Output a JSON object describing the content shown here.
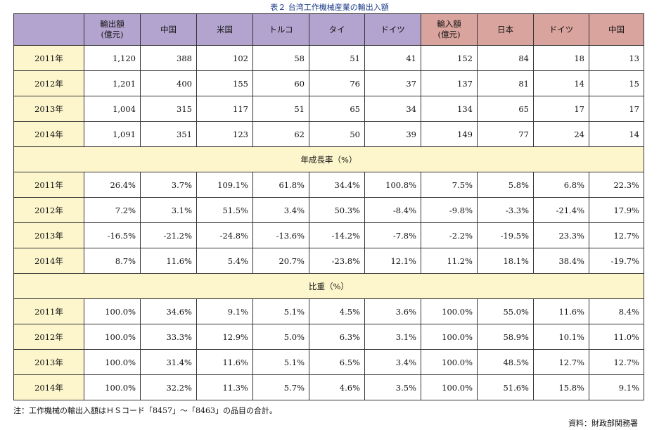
{
  "title": "表２ 台湾工作機械産業の輸出入額",
  "header": [
    "輸出額\n(億元)",
    "中国",
    "米国",
    "トルコ",
    "タイ",
    "ドイツ",
    "輸入額\n(億元)",
    "日本",
    "ドイツ",
    "中国"
  ],
  "header_colors": {
    "export": "#b3a4cf",
    "import": "#d9a49d",
    "year": "#fdf6cc"
  },
  "rows_amount": [
    {
      "year": "2011年",
      "values": [
        "1,120",
        "388",
        "102",
        "58",
        "51",
        "41",
        "152",
        "84",
        "18",
        "13"
      ]
    },
    {
      "year": "2012年",
      "values": [
        "1,201",
        "400",
        "155",
        "60",
        "76",
        "37",
        "137",
        "81",
        "14",
        "15"
      ]
    },
    {
      "year": "2013年",
      "values": [
        "1,004",
        "315",
        "117",
        "51",
        "65",
        "34",
        "134",
        "65",
        "17",
        "17"
      ]
    },
    {
      "year": "2014年",
      "values": [
        "1,091",
        "351",
        "123",
        "62",
        "50",
        "39",
        "149",
        "77",
        "24",
        "14"
      ]
    }
  ],
  "section_growth": "年成長率（%）",
  "rows_growth": [
    {
      "year": "2011年",
      "values": [
        "26.4%",
        "3.7%",
        "109.1%",
        "61.8%",
        "34.4%",
        "100.8%",
        "7.5%",
        "5.8%",
        "6.8%",
        "22.3%"
      ]
    },
    {
      "year": "2012年",
      "values": [
        "7.2%",
        "3.1%",
        "51.5%",
        "3.4%",
        "50.3%",
        "-8.4%",
        "-9.8%",
        "-3.3%",
        "-21.4%",
        "17.9%"
      ]
    },
    {
      "year": "2013年",
      "values": [
        "-16.5%",
        "-21.2%",
        "-24.8%",
        "-13.6%",
        "-14.2%",
        "-7.8%",
        "-2.2%",
        "-19.5%",
        "23.3%",
        "12.7%"
      ]
    },
    {
      "year": "2014年",
      "values": [
        "8.7%",
        "11.6%",
        "5.4%",
        "20.7%",
        "-23.8%",
        "12.1%",
        "11.2%",
        "18.1%",
        "38.4%",
        "-19.7%"
      ]
    }
  ],
  "section_share": "比重（%）",
  "rows_share": [
    {
      "year": "2011年",
      "values": [
        "100.0%",
        "34.6%",
        "9.1%",
        "5.1%",
        "4.5%",
        "3.6%",
        "100.0%",
        "55.0%",
        "11.6%",
        "8.4%"
      ]
    },
    {
      "year": "2012年",
      "values": [
        "100.0%",
        "33.3%",
        "12.9%",
        "5.0%",
        "6.3%",
        "3.1%",
        "100.0%",
        "58.9%",
        "10.1%",
        "11.0%"
      ]
    },
    {
      "year": "2013年",
      "values": [
        "100.0%",
        "31.4%",
        "11.6%",
        "5.1%",
        "6.5%",
        "3.4%",
        "100.0%",
        "48.5%",
        "12.7%",
        "12.7%"
      ]
    },
    {
      "year": "2014年",
      "values": [
        "100.0%",
        "32.2%",
        "11.3%",
        "5.7%",
        "4.6%",
        "3.5%",
        "100.0%",
        "51.6%",
        "15.8%",
        "9.1%"
      ]
    }
  ],
  "note": "注：工作機械の輸出入額はＨＳコード「8457」～「8463」の品目の合計。",
  "source": "資料：財政部関務署"
}
